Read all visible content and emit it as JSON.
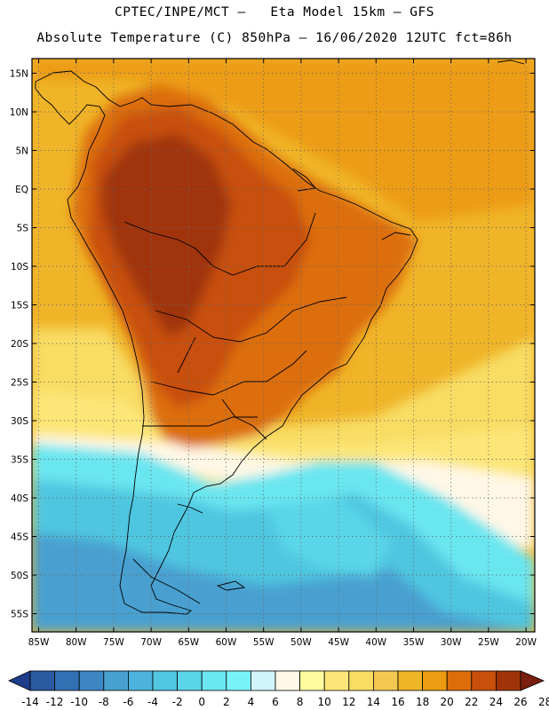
{
  "title_line1": "CPTEC/INPE/MCT –   Eta Model 15km – GFS",
  "title_line2": "Absolute Temperature (C) 850hPa – 16/06/2020 12UTC fct=86h",
  "lat_labels": [
    "15N",
    "10N",
    "5N",
    "EQ",
    "5S",
    "10S",
    "15S",
    "20S",
    "25S",
    "30S",
    "35S",
    "40S",
    "45S",
    "50S",
    "55S"
  ],
  "lon_labels": [
    "85W",
    "80W",
    "75W",
    "70W",
    "65W",
    "60W",
    "55W",
    "50W",
    "45W",
    "40W",
    "35W",
    "30W",
    "25W",
    "20W"
  ],
  "colorbar": {
    "labels": [
      "-14",
      "-12",
      "-10",
      "-8",
      "-6",
      "-4",
      "-2",
      "0",
      "2",
      "4",
      "6",
      "8",
      "10",
      "12",
      "14",
      "16",
      "18",
      "20",
      "22",
      "24",
      "26",
      "28"
    ],
    "colors": [
      "#1e3c8c",
      "#2a5aa0",
      "#3270b4",
      "#3c86c4",
      "#48a0d0",
      "#4cb4dc",
      "#50c6e0",
      "#5ad6e8",
      "#6ae6f0",
      "#78f4f8",
      "#d2f4fc",
      "#fff8e6",
      "#fffca0",
      "#fce678",
      "#f8dc64",
      "#f4c850",
      "#f0b428",
      "#ec9c12",
      "#dc6e0a",
      "#c8500a",
      "#a03408",
      "#7a1e0e"
    ]
  },
  "map_icon": "south-america-temperature-field"
}
